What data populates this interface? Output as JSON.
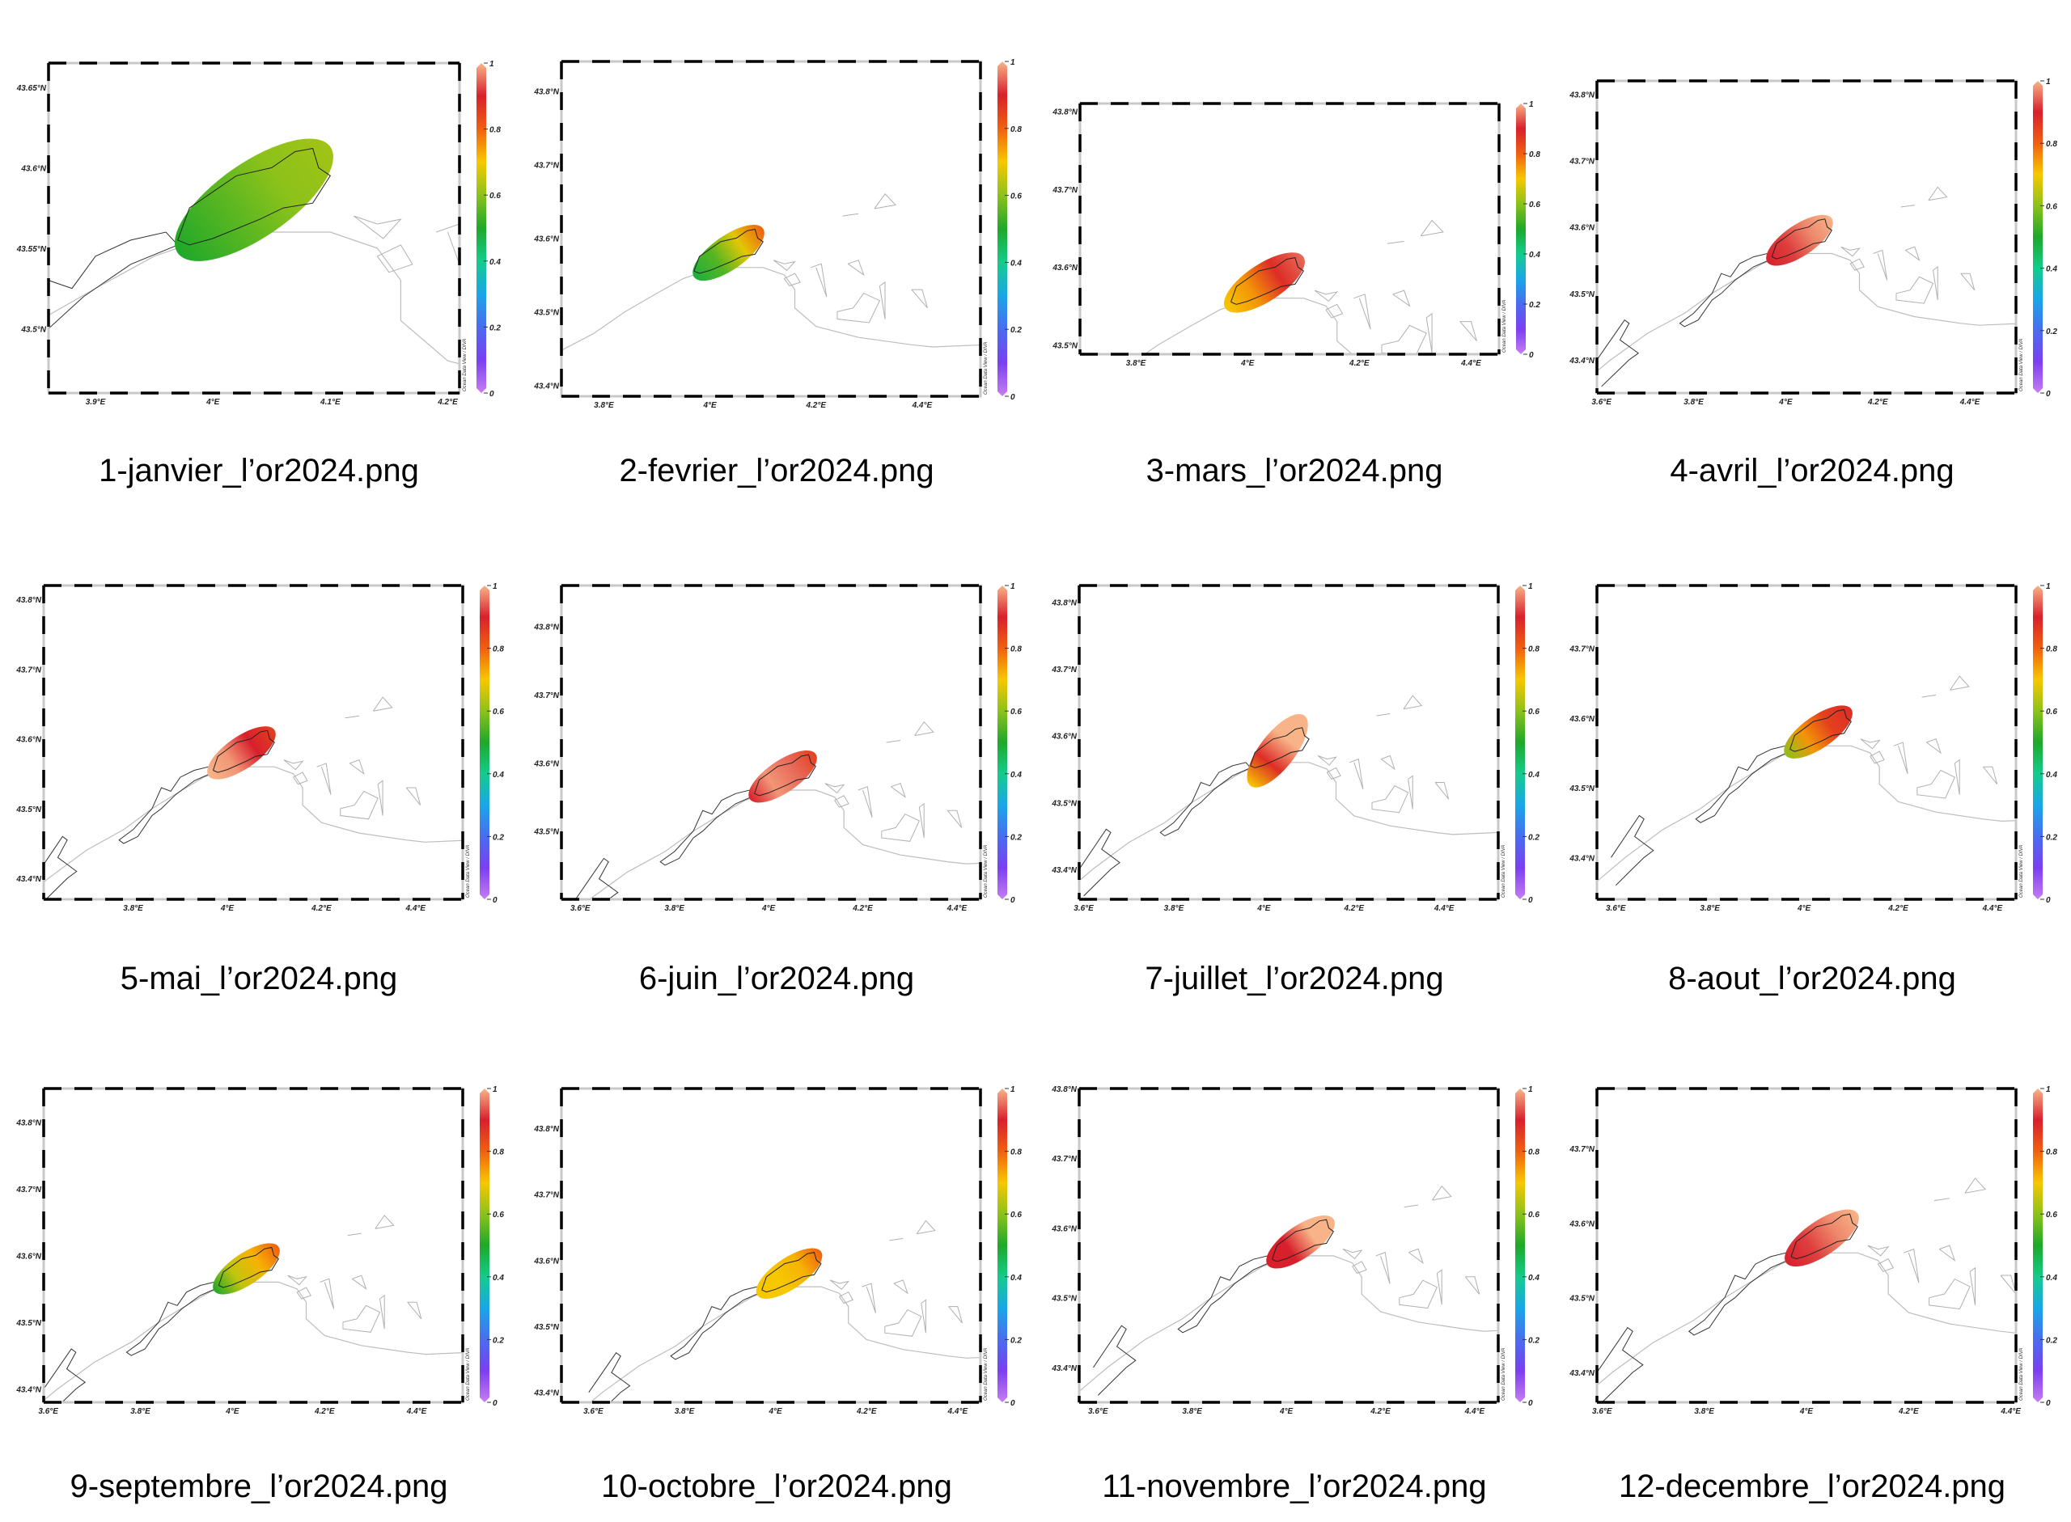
{
  "colorbar": {
    "ticks": [
      "0",
      "0.2",
      "0.4",
      "0.6",
      "0.8",
      "1"
    ],
    "tick_values": [
      0,
      0.2,
      0.4,
      0.6,
      0.8,
      1
    ],
    "range": [
      0,
      1
    ],
    "stops": [
      {
        "v": 0.0,
        "color": "#c77df2"
      },
      {
        "v": 0.1,
        "color": "#7b3ff0"
      },
      {
        "v": 0.2,
        "color": "#4a6cf0"
      },
      {
        "v": 0.3,
        "color": "#1aa6e8"
      },
      {
        "v": 0.4,
        "color": "#14cc8c"
      },
      {
        "v": 0.5,
        "color": "#1ea82a"
      },
      {
        "v": 0.6,
        "color": "#8cc21a"
      },
      {
        "v": 0.7,
        "color": "#f7c800"
      },
      {
        "v": 0.8,
        "color": "#f06010"
      },
      {
        "v": 0.9,
        "color": "#d8202c"
      },
      {
        "v": 1.0,
        "color": "#f8b488"
      }
    ],
    "credit": "Ocean Data View / DIVA"
  },
  "chart_data": [
    {
      "type": "heatmap",
      "title": "1-janvier_l’or2024.png",
      "xlim": [
        3.86,
        4.21
      ],
      "ylim": [
        43.46,
        43.665
      ],
      "xticks": [
        {
          "v": 3.9,
          "label": "3.9°E"
        },
        {
          "v": 4.0,
          "label": "4°E"
        },
        {
          "v": 4.1,
          "label": "4.1°E"
        },
        {
          "v": 4.2,
          "label": "4.2°E"
        }
      ],
      "yticks": [
        {
          "v": 43.5,
          "label": "43.5°N"
        },
        {
          "v": 43.55,
          "label": "43.55°N"
        },
        {
          "v": 43.6,
          "label": "43.6°N"
        },
        {
          "v": 43.65,
          "label": "43.65°N"
        }
      ],
      "plume": {
        "lon_range": [
          3.97,
          4.1
        ],
        "lat_range": [
          43.547,
          43.613
        ],
        "values_w_to_e": [
          0.5,
          0.55,
          0.6,
          0.62
        ]
      }
    },
    {
      "type": "heatmap",
      "title": "2-fevrier_l’or2024.png",
      "xlim": [
        3.72,
        4.51
      ],
      "ylim": [
        43.385,
        43.84
      ],
      "xticks": [
        {
          "v": 3.8,
          "label": "3.8°E"
        },
        {
          "v": 4.0,
          "label": "4°E"
        },
        {
          "v": 4.2,
          "label": "4.2°E"
        },
        {
          "v": 4.4,
          "label": "4.4°E"
        }
      ],
      "yticks": [
        {
          "v": 43.4,
          "label": "43.4°N"
        },
        {
          "v": 43.5,
          "label": "43.5°N"
        },
        {
          "v": 43.6,
          "label": "43.6°N"
        },
        {
          "v": 43.7,
          "label": "43.7°N"
        },
        {
          "v": 43.8,
          "label": "43.8°N"
        }
      ],
      "plume": {
        "lon_range": [
          3.97,
          4.1
        ],
        "lat_range": [
          43.547,
          43.613
        ],
        "values_w_to_e": [
          0.48,
          0.55,
          0.68,
          0.8
        ]
      }
    },
    {
      "type": "heatmap",
      "title": "3-mars_l’or2024.png",
      "xlim": [
        3.7,
        4.45
      ],
      "ylim": [
        43.488,
        43.81
      ],
      "xticks": [
        {
          "v": 3.8,
          "label": "3.8°E"
        },
        {
          "v": 4.0,
          "label": "4°E"
        },
        {
          "v": 4.2,
          "label": "4.2°E"
        },
        {
          "v": 4.4,
          "label": "4.4°E"
        }
      ],
      "yticks": [
        {
          "v": 43.5,
          "label": "43.5°N"
        },
        {
          "v": 43.6,
          "label": "43.6°N"
        },
        {
          "v": 43.7,
          "label": "43.7°N"
        },
        {
          "v": 43.8,
          "label": "43.8°N"
        }
      ],
      "plume": {
        "lon_range": [
          3.96,
          4.1
        ],
        "lat_range": [
          43.547,
          43.613
        ],
        "values_w_to_e": [
          0.7,
          0.75,
          0.88,
          0.95
        ]
      }
    },
    {
      "type": "heatmap",
      "title": "4-avril_l’or2024.png",
      "xlim": [
        3.59,
        4.5
      ],
      "ylim": [
        43.35,
        43.82
      ],
      "xticks": [
        {
          "v": 3.6,
          "label": "3.6°E"
        },
        {
          "v": 3.8,
          "label": "3.8°E"
        },
        {
          "v": 4.0,
          "label": "4°E"
        },
        {
          "v": 4.2,
          "label": "4.2°E"
        },
        {
          "v": 4.4,
          "label": "4.4°E"
        }
      ],
      "yticks": [
        {
          "v": 43.4,
          "label": "43.4°N"
        },
        {
          "v": 43.5,
          "label": "43.5°N"
        },
        {
          "v": 43.6,
          "label": "43.6°N"
        },
        {
          "v": 43.7,
          "label": "43.7°N"
        },
        {
          "v": 43.8,
          "label": "43.8°N"
        }
      ],
      "plume": {
        "lon_range": [
          3.96,
          4.1
        ],
        "lat_range": [
          43.547,
          43.613
        ],
        "values_w_to_e": [
          0.9,
          0.92,
          0.97,
          1.0
        ]
      }
    },
    {
      "type": "heatmap",
      "title": "5-mai_l’or2024.png",
      "xlim": [
        3.61,
        4.5
      ],
      "ylim": [
        43.37,
        43.82
      ],
      "xticks": [
        {
          "v": 3.8,
          "label": "3.8°E"
        },
        {
          "v": 4.0,
          "label": "4°E"
        },
        {
          "v": 4.2,
          "label": "4.2°E"
        },
        {
          "v": 4.4,
          "label": "4.4°E"
        }
      ],
      "yticks": [
        {
          "v": 43.4,
          "label": "43.4°N"
        },
        {
          "v": 43.5,
          "label": "43.5°N"
        },
        {
          "v": 43.6,
          "label": "43.6°N"
        },
        {
          "v": 43.7,
          "label": "43.7°N"
        },
        {
          "v": 43.8,
          "label": "43.8°N"
        }
      ],
      "plume": {
        "lon_range": [
          3.96,
          4.1
        ],
        "lat_range": [
          43.547,
          43.613
        ],
        "values_w_to_e": [
          1.0,
          0.98,
          0.9,
          0.85
        ]
      }
    },
    {
      "type": "heatmap",
      "title": "6-juin_l’or2024.png",
      "xlim": [
        3.56,
        4.45
      ],
      "ylim": [
        43.4,
        43.86
      ],
      "xticks": [
        {
          "v": 3.6,
          "label": "3.6°E"
        },
        {
          "v": 3.8,
          "label": "3.8°E"
        },
        {
          "v": 4.0,
          "label": "4°E"
        },
        {
          "v": 4.2,
          "label": "4.2°E"
        },
        {
          "v": 4.4,
          "label": "4.4°E"
        }
      ],
      "yticks": [
        {
          "v": 43.5,
          "label": "43.5°N"
        },
        {
          "v": 43.6,
          "label": "43.6°N"
        },
        {
          "v": 43.7,
          "label": "43.7°N"
        },
        {
          "v": 43.8,
          "label": "43.8°N"
        }
      ],
      "plume": {
        "lon_range": [
          3.96,
          4.1
        ],
        "lat_range": [
          43.547,
          43.613
        ],
        "values_w_to_e": [
          0.9,
          0.98,
          0.95,
          0.85
        ]
      }
    },
    {
      "type": "heatmap",
      "title": "7-juillet_l’or2024.png",
      "xlim": [
        3.59,
        4.52
      ],
      "ylim": [
        43.355,
        43.825
      ],
      "xticks": [
        {
          "v": 3.6,
          "label": "3.6°E"
        },
        {
          "v": 3.8,
          "label": "3.8°E"
        },
        {
          "v": 4.0,
          "label": "4°E"
        },
        {
          "v": 4.2,
          "label": "4.2°E"
        },
        {
          "v": 4.4,
          "label": "4.4°E"
        }
      ],
      "yticks": [
        {
          "v": 43.4,
          "label": "43.4°N"
        },
        {
          "v": 43.5,
          "label": "43.5°N"
        },
        {
          "v": 43.6,
          "label": "43.6°N"
        },
        {
          "v": 43.7,
          "label": "43.7°N"
        },
        {
          "v": 43.8,
          "label": "43.8°N"
        }
      ],
      "plume": {
        "lon_range": [
          3.97,
          4.09
        ],
        "lat_range": [
          43.525,
          43.63
        ],
        "values_w_to_e": [
          0.7,
          0.88,
          1.0,
          1.0
        ]
      }
    },
    {
      "type": "heatmap",
      "title": "8-aout_l’or2024.png",
      "xlim": [
        3.56,
        4.45
      ],
      "ylim": [
        43.34,
        43.79
      ],
      "xticks": [
        {
          "v": 3.6,
          "label": "3.6°E"
        },
        {
          "v": 3.8,
          "label": "3.8°E"
        },
        {
          "v": 4.0,
          "label": "4°E"
        },
        {
          "v": 4.2,
          "label": "4.2°E"
        },
        {
          "v": 4.4,
          "label": "4.4°E"
        }
      ],
      "yticks": [
        {
          "v": 43.4,
          "label": "43.4°N"
        },
        {
          "v": 43.5,
          "label": "43.5°N"
        },
        {
          "v": 43.6,
          "label": "43.6°N"
        },
        {
          "v": 43.7,
          "label": "43.7°N"
        }
      ],
      "plume": {
        "lon_range": [
          3.96,
          4.1
        ],
        "lat_range": [
          43.547,
          43.613
        ],
        "values_w_to_e": [
          0.6,
          0.75,
          0.85,
          0.88
        ]
      }
    },
    {
      "type": "heatmap",
      "title": "9-septembre_l’or2024.png",
      "xlim": [
        3.59,
        4.5
      ],
      "ylim": [
        43.38,
        43.85
      ],
      "xticks": [
        {
          "v": 3.6,
          "label": "3.6°E"
        },
        {
          "v": 3.8,
          "label": "3.8°E"
        },
        {
          "v": 4.0,
          "label": "4°E"
        },
        {
          "v": 4.2,
          "label": "4.2°E"
        },
        {
          "v": 4.4,
          "label": "4.4°E"
        }
      ],
      "yticks": [
        {
          "v": 43.4,
          "label": "43.4°N"
        },
        {
          "v": 43.5,
          "label": "43.5°N"
        },
        {
          "v": 43.6,
          "label": "43.6°N"
        },
        {
          "v": 43.7,
          "label": "43.7°N"
        },
        {
          "v": 43.8,
          "label": "43.8°N"
        }
      ],
      "plume": {
        "lon_range": [
          3.96,
          4.1
        ],
        "lat_range": [
          43.547,
          43.613
        ],
        "values_w_to_e": [
          0.5,
          0.65,
          0.72,
          0.8
        ]
      }
    },
    {
      "type": "heatmap",
      "title": "10-octobre_l’or2024.png",
      "xlim": [
        3.53,
        4.45
      ],
      "ylim": [
        43.385,
        43.86
      ],
      "xticks": [
        {
          "v": 3.6,
          "label": "3.6°E"
        },
        {
          "v": 3.8,
          "label": "3.8°E"
        },
        {
          "v": 4.0,
          "label": "4°E"
        },
        {
          "v": 4.2,
          "label": "4.2°E"
        },
        {
          "v": 4.4,
          "label": "4.4°E"
        }
      ],
      "yticks": [
        {
          "v": 43.4,
          "label": "43.4°N"
        },
        {
          "v": 43.5,
          "label": "43.5°N"
        },
        {
          "v": 43.6,
          "label": "43.6°N"
        },
        {
          "v": 43.7,
          "label": "43.7°N"
        },
        {
          "v": 43.8,
          "label": "43.8°N"
        }
      ],
      "plume": {
        "lon_range": [
          3.96,
          4.1
        ],
        "lat_range": [
          43.547,
          43.613
        ],
        "values_w_to_e": [
          0.7,
          0.7,
          0.72,
          0.8
        ]
      }
    },
    {
      "type": "heatmap",
      "title": "11-novembre_l’or2024.png",
      "xlim": [
        3.56,
        4.45
      ],
      "ylim": [
        43.35,
        43.8
      ],
      "xticks": [
        {
          "v": 3.6,
          "label": "3.6°E"
        },
        {
          "v": 3.8,
          "label": "3.8°E"
        },
        {
          "v": 4.0,
          "label": "4°E"
        },
        {
          "v": 4.2,
          "label": "4.2°E"
        },
        {
          "v": 4.4,
          "label": "4.4°E"
        }
      ],
      "yticks": [
        {
          "v": 43.4,
          "label": "43.4°N"
        },
        {
          "v": 43.5,
          "label": "43.5°N"
        },
        {
          "v": 43.6,
          "label": "43.6°N"
        },
        {
          "v": 43.7,
          "label": "43.7°N"
        },
        {
          "v": 43.8,
          "label": "43.8°N"
        }
      ],
      "plume": {
        "lon_range": [
          3.96,
          4.1
        ],
        "lat_range": [
          43.547,
          43.613
        ],
        "values_w_to_e": [
          0.9,
          0.9,
          1.0,
          1.0
        ]
      }
    },
    {
      "type": "heatmap",
      "title": "12-decembre_l’or2024.png",
      "xlim": [
        3.59,
        4.41
      ],
      "ylim": [
        43.36,
        43.78
      ],
      "xticks": [
        {
          "v": 3.6,
          "label": "3.6°E"
        },
        {
          "v": 3.8,
          "label": "3.8°E"
        },
        {
          "v": 4.0,
          "label": "4°E"
        },
        {
          "v": 4.2,
          "label": "4.2°E"
        },
        {
          "v": 4.4,
          "label": "4.4°E"
        }
      ],
      "yticks": [
        {
          "v": 43.4,
          "label": "43.4°N"
        },
        {
          "v": 43.5,
          "label": "43.5°N"
        },
        {
          "v": 43.6,
          "label": "43.6°N"
        },
        {
          "v": 43.7,
          "label": "43.7°N"
        }
      ],
      "plume": {
        "lon_range": [
          3.96,
          4.1
        ],
        "lat_range": [
          43.547,
          43.613
        ],
        "values_w_to_e": [
          0.9,
          0.92,
          0.97,
          1.0
        ]
      }
    }
  ],
  "captions": [
    "1-janvier_l’or2024.png",
    "2-fevrier_l’or2024.png",
    "3-mars_l’or2024.png",
    "4-avril_l’or2024.png",
    "5-mai_l’or2024.png",
    "6-juin_l’or2024.png",
    "7-juillet_l’or2024.png",
    "8-aout_l’or2024.png",
    "9-septembre_l’or2024.png",
    "10-octobre_l’or2024.png",
    "11-novembre_l’or2024.png",
    "12-decembre_l’or2024.png"
  ]
}
